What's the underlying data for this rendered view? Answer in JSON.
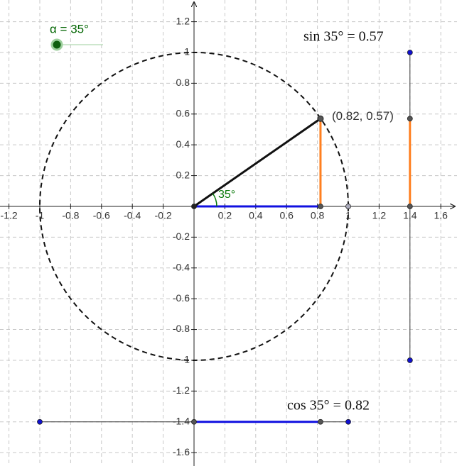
{
  "slider": {
    "label": "α = 35°"
  },
  "axes": {
    "xlim": [
      -1.258,
      1.705
    ],
    "ylim": [
      -1.687,
      1.341
    ],
    "xticks": [
      -1.2,
      -1,
      -0.8,
      -0.6,
      -0.4,
      -0.2,
      0.2,
      0.4,
      0.6,
      0.8,
      1,
      1.2,
      1.4,
      1.6
    ],
    "yticks": [
      1.2,
      1,
      0.8,
      0.6,
      0.4,
      0.2,
      -0.2,
      -0.4,
      -0.6,
      -0.8,
      -1,
      -1.2,
      -1.4,
      -1.6
    ]
  },
  "point": {
    "label": "(0.82, 0.57)",
    "x": 0.82,
    "y": 0.57
  },
  "angle_label": "35°",
  "sin_label": "sin 35° = 0.57",
  "cos_label": "cos 35° = 0.82",
  "sin_line_x": 1.4,
  "cos_line_y": -1.4
}
